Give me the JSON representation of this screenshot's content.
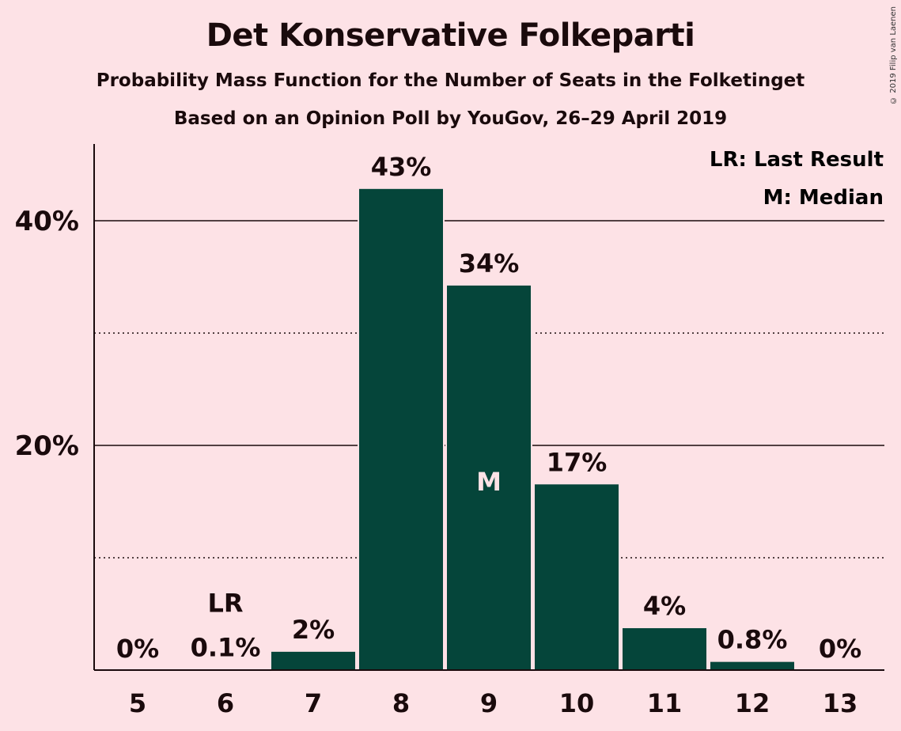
{
  "header": {
    "title": "Det Konservative Folkeparti",
    "subtitle": "Probability Mass Function for the Number of Seats in the Folketinget",
    "subtitle2": "Based on an Opinion Poll by YouGov, 26–29 April 2019",
    "copyright": "© 2019 Filip van Laenen"
  },
  "legend": {
    "last_result": "LR: Last Result",
    "median": "M: Median"
  },
  "colors": {
    "background": "#fde2e6",
    "bar": "#05453a",
    "text": "#1a0a0c"
  },
  "chart_data": {
    "type": "bar",
    "categories": [
      "5",
      "6",
      "7",
      "8",
      "9",
      "10",
      "11",
      "12",
      "13"
    ],
    "values": [
      0,
      0.1,
      1.7,
      42.9,
      34.3,
      16.6,
      3.8,
      0.8,
      0
    ],
    "value_labels": [
      "0%",
      "0.1%",
      "2%",
      "43%",
      "34%",
      "17%",
      "4%",
      "0.8%",
      "0%"
    ],
    "ylim": [
      0,
      47
    ],
    "y_ticks": [
      {
        "value": 20,
        "label": "20%",
        "style": "solid"
      },
      {
        "value": 40,
        "label": "40%",
        "style": "solid"
      }
    ],
    "y_minor_gridlines": [
      10,
      30
    ],
    "markers": [
      {
        "category": "6",
        "label": "LR",
        "position": "above"
      },
      {
        "category": "9",
        "label": "M",
        "position": "inside"
      }
    ],
    "legend_position": "top-right"
  }
}
